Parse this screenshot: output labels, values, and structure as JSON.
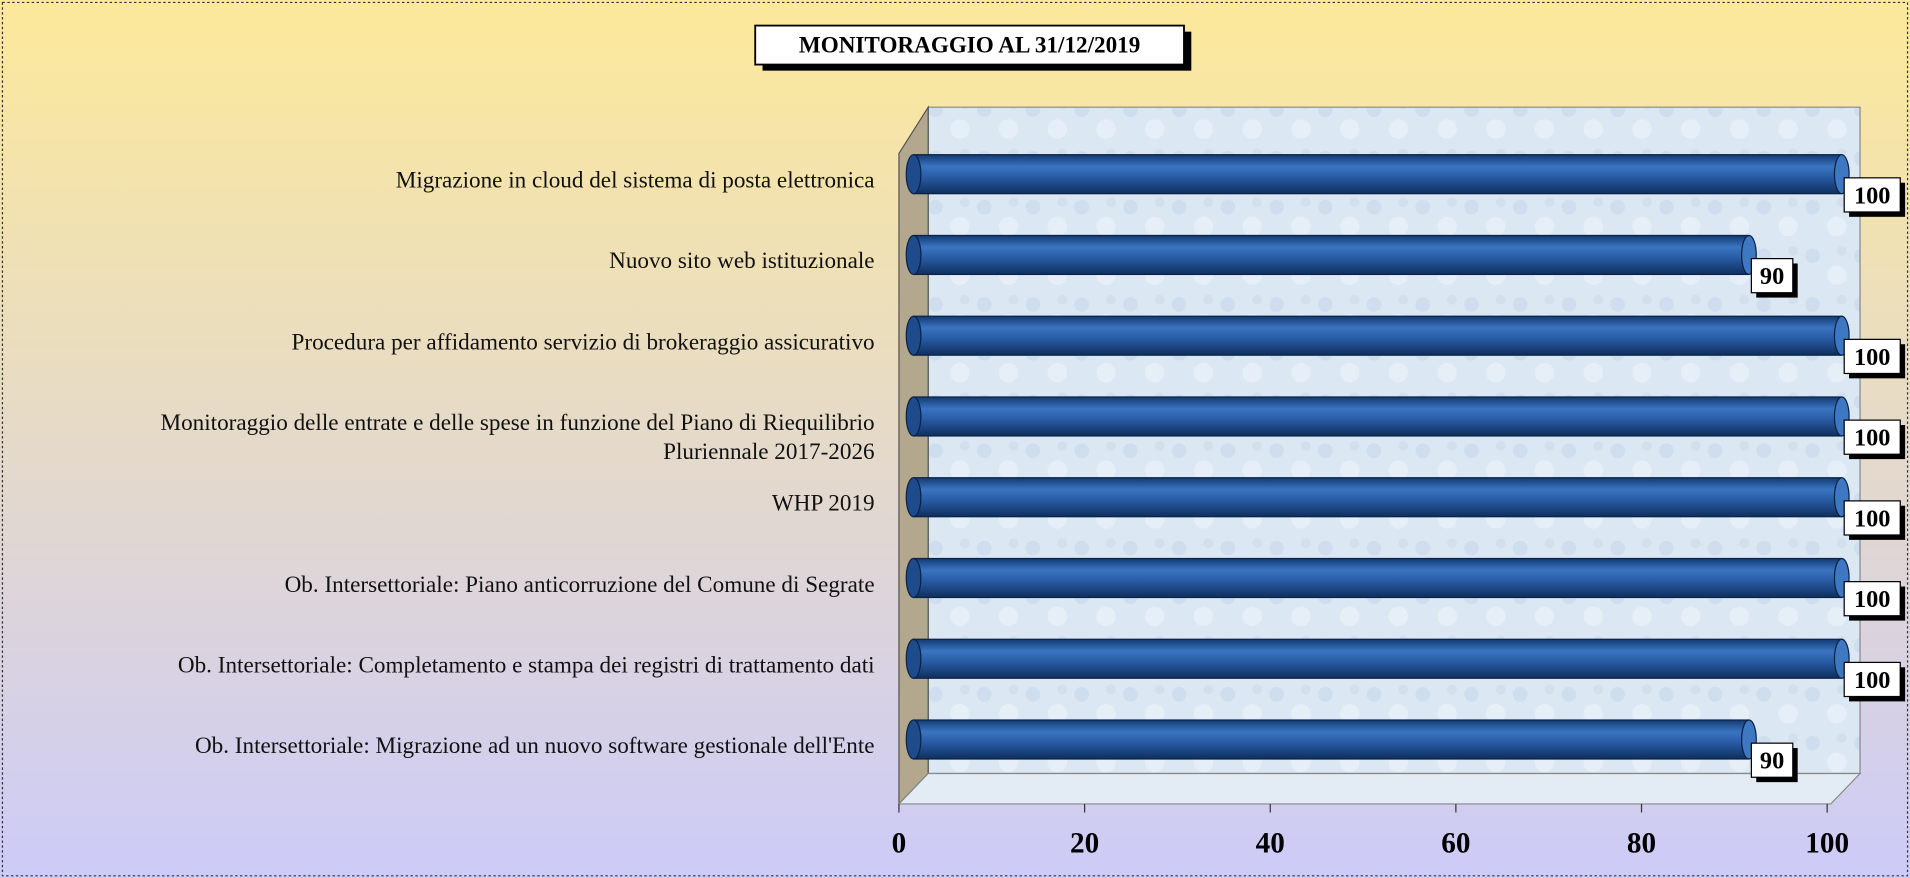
{
  "chart_data": {
    "type": "bar",
    "orientation": "horizontal",
    "title": "MONITORAGGIO  AL 31/12/2019",
    "categories": [
      "Migrazione in cloud del sistema di posta elettronica",
      "Nuovo sito web istituzionale",
      "Procedura per affidamento servizio di brokeraggio assicurativo",
      "Monitoraggio delle entrate e delle spese in funzione del Piano di Riequilibrio\nPluriennale 2017-2026",
      "WHP 2019",
      "Ob. Intersettoriale: Piano anticorruzione del Comune di Segrate",
      "Ob. Intersettoriale: Completamento e stampa dei registri di trattamento dati",
      "Ob. Intersettoriale: Migrazione ad un nuovo software gestionale dell'Ente"
    ],
    "values": [
      100,
      90,
      100,
      100,
      100,
      100,
      100,
      90
    ],
    "color": "#2a5ea8",
    "xlim": [
      0,
      100
    ],
    "xticks": [
      0,
      20,
      40,
      60,
      80,
      100
    ],
    "grid": false
  }
}
